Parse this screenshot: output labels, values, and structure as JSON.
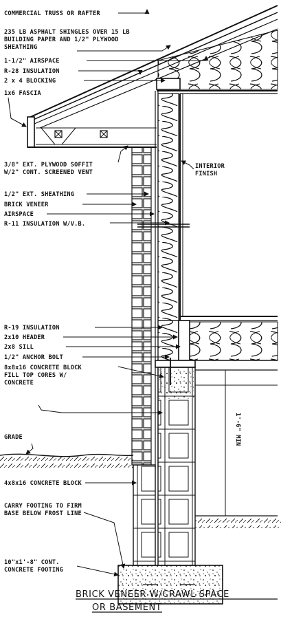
{
  "labels": {
    "truss": "COMMERCIAL TRUSS OR RAFTER",
    "shingles_1": "235 LB ASPHALT SHINGLES OVER 15 LB",
    "shingles_2": "BUILDING PAPER AND 1/2\" PLYWOOD",
    "shingles_3": "SHEATHING",
    "airspace_top": "1-1/2\" AIRSPACE",
    "r28": "R-28 INSULATION",
    "blocking": "2 x 4 BLOCKING",
    "fascia": "1x6 FASCIA",
    "soffit_1": "3/8\" EXT. PLYWOOD SOFFIT",
    "soffit_2": "W/2\" CONT. SCREENED VENT",
    "interior_1": "INTERIOR",
    "interior_2": "FINISH",
    "ext_sheathing": "1/2\" EXT. SHEATHING",
    "brick_veneer": "BRICK VENEER",
    "airspace": "AIRSPACE",
    "r11": "R-11 INSULATION W/V.B.",
    "r19": "R-19 INSULATION",
    "header": "2x10 HEADER",
    "sill": "2x8 SILL",
    "anchor_bolt": "1/2\" ANCHOR BOLT",
    "block_1": "8x8x16 CONCRETE BLOCK",
    "block_2": "FILL TOP CORES W/",
    "block_3": "CONCRETE",
    "dimension": "1'-6\" MIN",
    "grade": "GRADE",
    "block_4x8": "4x8x16 CONCRETE BLOCK",
    "footing_note_1": "CARRY FOOTING TO FIRM",
    "footing_note_2": "BASE BELOW FROST LINE",
    "footing_1": "10\"x1'-8\" CONT.",
    "footing_2": "CONCRETE FOOTING"
  },
  "caption": {
    "line1": "BRICK VENEER W/CRAWL SPACE",
    "line2": "OR BASEMENT"
  }
}
